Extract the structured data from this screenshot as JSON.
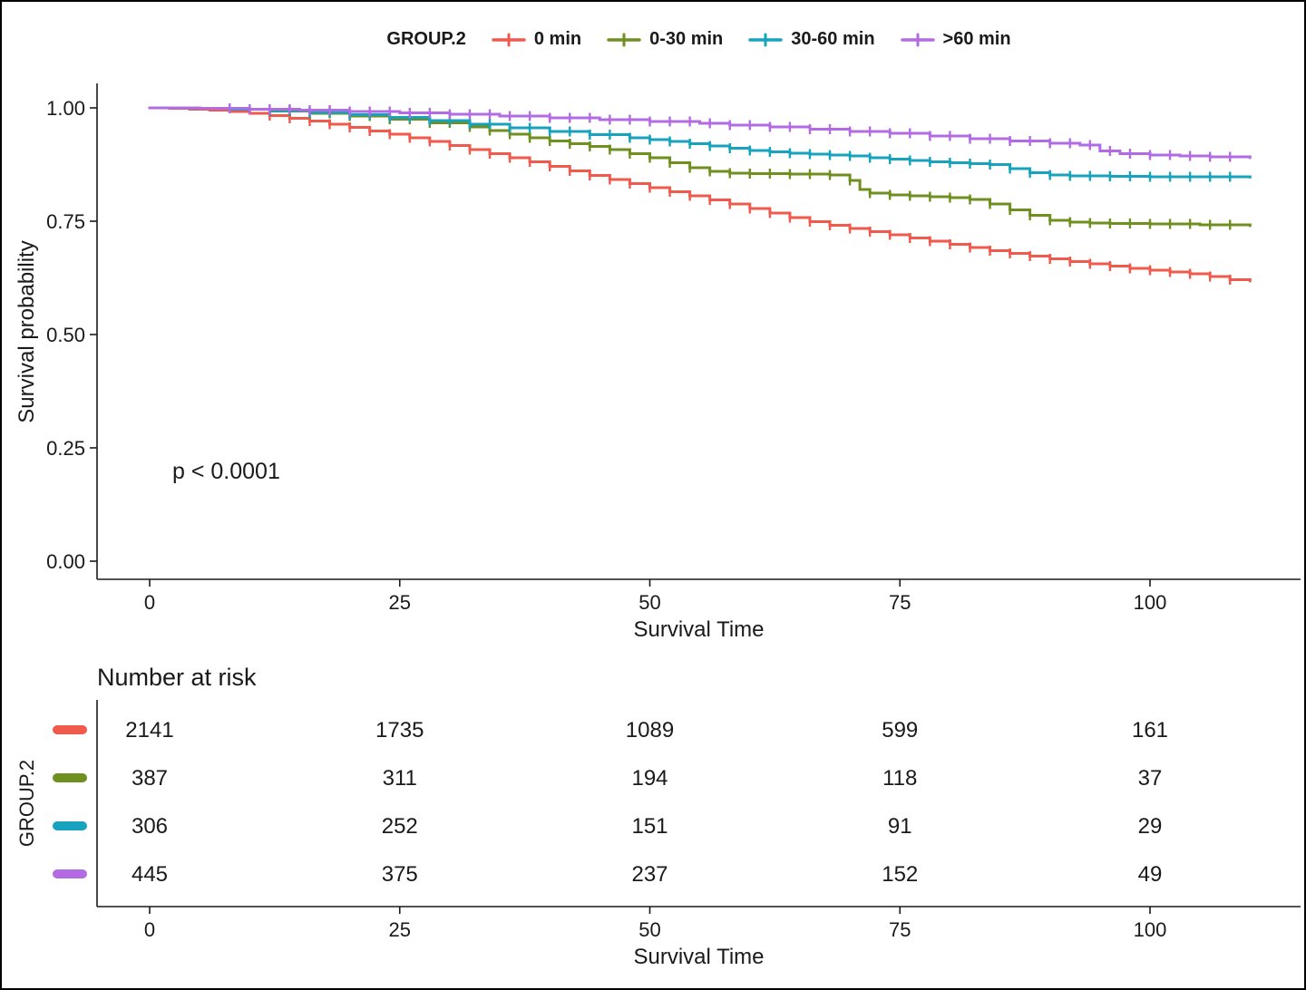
{
  "chart_data": {
    "type": "line",
    "subtype": "kaplan-meier-step",
    "legend_title": "GROUP.2",
    "legend_position": "top",
    "xlabel": "Survival Time",
    "ylabel": "Survival probability",
    "annotation": "p < 0.0001",
    "xlim": [
      0,
      113
    ],
    "ylim": [
      0,
      1.04
    ],
    "grid": false,
    "xticks": [
      0,
      25,
      50,
      75,
      100
    ],
    "ytick_values": [
      0,
      0.25,
      0.5,
      0.75,
      1
    ],
    "ytick_labels": [
      "0.00",
      "0.25",
      "0.50",
      "0.75",
      "1.00"
    ],
    "series": [
      {
        "name": "0 min",
        "color": "#EF5A4D",
        "points": [
          [
            0,
            1
          ],
          [
            2,
            0.999
          ],
          [
            4,
            0.997
          ],
          [
            6,
            0.995
          ],
          [
            8,
            0.992
          ],
          [
            10,
            0.988
          ],
          [
            12,
            0.983
          ],
          [
            14,
            0.977
          ],
          [
            16,
            0.971
          ],
          [
            18,
            0.964
          ],
          [
            20,
            0.957
          ],
          [
            22,
            0.949
          ],
          [
            24,
            0.942
          ],
          [
            26,
            0.934
          ],
          [
            28,
            0.926
          ],
          [
            30,
            0.917
          ],
          [
            32,
            0.908
          ],
          [
            34,
            0.899
          ],
          [
            36,
            0.89
          ],
          [
            38,
            0.881
          ],
          [
            40,
            0.871
          ],
          [
            42,
            0.861
          ],
          [
            44,
            0.851
          ],
          [
            46,
            0.842
          ],
          [
            48,
            0.833
          ],
          [
            50,
            0.824
          ],
          [
            52,
            0.815
          ],
          [
            54,
            0.806
          ],
          [
            56,
            0.797
          ],
          [
            58,
            0.788
          ],
          [
            60,
            0.778
          ],
          [
            62,
            0.768
          ],
          [
            64,
            0.758
          ],
          [
            66,
            0.749
          ],
          [
            68,
            0.741
          ],
          [
            70,
            0.734
          ],
          [
            72,
            0.727
          ],
          [
            74,
            0.72
          ],
          [
            76,
            0.713
          ],
          [
            78,
            0.706
          ],
          [
            80,
            0.699
          ],
          [
            82,
            0.692
          ],
          [
            84,
            0.685
          ],
          [
            86,
            0.679
          ],
          [
            88,
            0.673
          ],
          [
            90,
            0.667
          ],
          [
            92,
            0.661
          ],
          [
            94,
            0.656
          ],
          [
            96,
            0.651
          ],
          [
            98,
            0.646
          ],
          [
            100,
            0.642
          ],
          [
            102,
            0.638
          ],
          [
            104,
            0.634
          ],
          [
            106,
            0.628
          ],
          [
            108,
            0.621
          ],
          [
            110,
            0.618
          ]
        ],
        "censors": [
          12,
          14,
          16,
          18,
          20,
          22,
          24,
          26,
          28,
          30,
          32,
          34,
          36,
          38,
          40,
          42,
          44,
          46,
          48,
          50,
          52,
          54,
          56,
          58,
          60,
          62,
          64,
          66,
          68,
          70,
          72,
          74,
          76,
          78,
          80,
          82,
          84,
          86,
          88,
          90,
          92,
          94,
          96,
          98,
          100,
          102,
          104,
          106,
          108
        ]
      },
      {
        "name": "0-30 min",
        "color": "#6F8F1F",
        "points": [
          [
            0,
            1
          ],
          [
            4,
            0.999
          ],
          [
            8,
            0.997
          ],
          [
            12,
            0.993
          ],
          [
            16,
            0.988
          ],
          [
            20,
            0.982
          ],
          [
            24,
            0.975
          ],
          [
            28,
            0.967
          ],
          [
            32,
            0.958
          ],
          [
            34,
            0.95
          ],
          [
            36,
            0.942
          ],
          [
            38,
            0.934
          ],
          [
            40,
            0.927
          ],
          [
            42,
            0.921
          ],
          [
            44,
            0.915
          ],
          [
            46,
            0.908
          ],
          [
            48,
            0.899
          ],
          [
            50,
            0.89
          ],
          [
            52,
            0.879
          ],
          [
            54,
            0.868
          ],
          [
            56,
            0.86
          ],
          [
            58,
            0.856
          ],
          [
            60,
            0.855
          ],
          [
            64,
            0.854
          ],
          [
            68,
            0.852
          ],
          [
            70,
            0.84
          ],
          [
            71,
            0.82
          ],
          [
            72,
            0.812
          ],
          [
            74,
            0.808
          ],
          [
            76,
            0.806
          ],
          [
            78,
            0.804
          ],
          [
            80,
            0.802
          ],
          [
            82,
            0.798
          ],
          [
            84,
            0.788
          ],
          [
            86,
            0.775
          ],
          [
            88,
            0.763
          ],
          [
            90,
            0.752
          ],
          [
            92,
            0.748
          ],
          [
            94,
            0.746
          ],
          [
            96,
            0.745
          ],
          [
            100,
            0.744
          ],
          [
            105,
            0.742
          ],
          [
            110,
            0.74
          ]
        ],
        "censors": [
          14,
          16,
          18,
          20,
          22,
          24,
          26,
          28,
          30,
          32,
          34,
          36,
          38,
          40,
          42,
          44,
          46,
          48,
          50,
          52,
          54,
          56,
          58,
          60,
          62,
          64,
          66,
          68,
          70,
          72,
          74,
          76,
          78,
          80,
          82,
          84,
          86,
          88,
          90,
          92,
          94,
          96,
          98,
          100,
          102,
          104,
          106,
          108
        ]
      },
      {
        "name": "30-60 min",
        "color": "#17A3BE",
        "points": [
          [
            0,
            1
          ],
          [
            4,
            0.999
          ],
          [
            8,
            0.997
          ],
          [
            12,
            0.994
          ],
          [
            16,
            0.99
          ],
          [
            20,
            0.985
          ],
          [
            24,
            0.979
          ],
          [
            28,
            0.972
          ],
          [
            32,
            0.964
          ],
          [
            36,
            0.956
          ],
          [
            40,
            0.948
          ],
          [
            44,
            0.941
          ],
          [
            48,
            0.934
          ],
          [
            50,
            0.93
          ],
          [
            52,
            0.926
          ],
          [
            54,
            0.921
          ],
          [
            56,
            0.916
          ],
          [
            58,
            0.911
          ],
          [
            60,
            0.906
          ],
          [
            62,
            0.903
          ],
          [
            64,
            0.9
          ],
          [
            66,
            0.898
          ],
          [
            68,
            0.896
          ],
          [
            70,
            0.894
          ],
          [
            72,
            0.89
          ],
          [
            74,
            0.887
          ],
          [
            76,
            0.884
          ],
          [
            78,
            0.881
          ],
          [
            80,
            0.879
          ],
          [
            82,
            0.877
          ],
          [
            84,
            0.875
          ],
          [
            86,
            0.866
          ],
          [
            88,
            0.857
          ],
          [
            90,
            0.852
          ],
          [
            92,
            0.85
          ],
          [
            96,
            0.849
          ],
          [
            100,
            0.848
          ],
          [
            105,
            0.848
          ],
          [
            110,
            0.847
          ]
        ],
        "censors": [
          12,
          14,
          16,
          18,
          20,
          22,
          24,
          26,
          28,
          30,
          32,
          34,
          36,
          38,
          40,
          42,
          44,
          46,
          48,
          50,
          52,
          54,
          56,
          58,
          60,
          62,
          64,
          66,
          68,
          70,
          72,
          74,
          76,
          78,
          80,
          82,
          84,
          86,
          88,
          90,
          92,
          94,
          96,
          98,
          100,
          102,
          104,
          106,
          108
        ]
      },
      {
        "name": ">60 min",
        "color": "#B36BE4",
        "points": [
          [
            0,
            1
          ],
          [
            5,
            0.999
          ],
          [
            10,
            0.997
          ],
          [
            15,
            0.995
          ],
          [
            20,
            0.992
          ],
          [
            25,
            0.989
          ],
          [
            30,
            0.986
          ],
          [
            35,
            0.982
          ],
          [
            40,
            0.978
          ],
          [
            45,
            0.974
          ],
          [
            50,
            0.97
          ],
          [
            55,
            0.966
          ],
          [
            58,
            0.962
          ],
          [
            62,
            0.958
          ],
          [
            66,
            0.953
          ],
          [
            70,
            0.948
          ],
          [
            74,
            0.944
          ],
          [
            78,
            0.938
          ],
          [
            82,
            0.932
          ],
          [
            86,
            0.927
          ],
          [
            90,
            0.922
          ],
          [
            93,
            0.918
          ],
          [
            95,
            0.905
          ],
          [
            97,
            0.899
          ],
          [
            100,
            0.896
          ],
          [
            103,
            0.894
          ],
          [
            106,
            0.892
          ],
          [
            110,
            0.89
          ]
        ],
        "censors": [
          8,
          10,
          12,
          14,
          16,
          18,
          20,
          22,
          24,
          26,
          28,
          30,
          32,
          34,
          36,
          38,
          40,
          42,
          44,
          46,
          48,
          50,
          52,
          54,
          56,
          58,
          60,
          62,
          64,
          66,
          68,
          70,
          72,
          74,
          76,
          78,
          80,
          82,
          84,
          86,
          88,
          90,
          92,
          94,
          96,
          98,
          100,
          102,
          104,
          106,
          108
        ]
      }
    ]
  },
  "risk_table": {
    "title": "Number at risk",
    "axis_label": "GROUP.2",
    "xlabel": "Survival Time",
    "xticks": [
      0,
      25,
      50,
      75,
      100
    ],
    "rows": [
      {
        "group": "0 min",
        "color": "#EF5A4D",
        "counts": [
          2141,
          1735,
          1089,
          599,
          161
        ]
      },
      {
        "group": "0-30 min",
        "color": "#6F8F1F",
        "counts": [
          387,
          311,
          194,
          118,
          37
        ]
      },
      {
        "group": "30-60 min",
        "color": "#17A3BE",
        "counts": [
          306,
          252,
          151,
          91,
          29
        ]
      },
      {
        "group": ">60 min",
        "color": "#B36BE4",
        "counts": [
          445,
          375,
          237,
          152,
          49
        ]
      }
    ]
  }
}
